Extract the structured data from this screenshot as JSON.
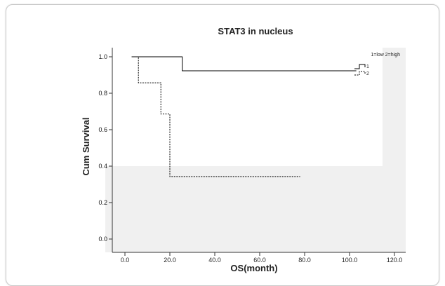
{
  "chart_data": {
    "type": "line",
    "title": "STAT3 in nucleus",
    "xlabel": "OS(month)",
    "ylabel": "Cum Survival",
    "xlim": [
      -5,
      125
    ],
    "ylim": [
      -0.02,
      1.04
    ],
    "x_ticks": [
      0,
      20,
      40,
      60,
      80,
      100,
      120
    ],
    "x_tick_labels": [
      "0.0",
      "20.0",
      "40.0",
      "60.0",
      "80.0",
      "100.0",
      "120.0"
    ],
    "y_ticks": [
      0.0,
      0.2,
      0.4,
      0.6,
      0.8,
      1.0
    ],
    "y_tick_labels": [
      "0.0",
      "0.2",
      "0.4",
      "0.6",
      "0.8",
      "1.0"
    ],
    "legend_title": "1=low 2=high",
    "legend_position": "top-right",
    "series": [
      {
        "name": "1",
        "style": "solid",
        "steps": [
          [
            3,
            1.0
          ],
          [
            25.5,
            1.0
          ],
          [
            25.5,
            0.923
          ],
          [
            103,
            0.923
          ]
        ]
      },
      {
        "name": "2",
        "style": "dashed",
        "steps": [
          [
            3,
            1.0
          ],
          [
            6,
            1.0
          ],
          [
            6,
            0.857
          ],
          [
            16,
            0.857
          ],
          [
            16,
            0.686
          ],
          [
            20,
            0.686
          ],
          [
            20,
            0.343
          ],
          [
            78,
            0.343
          ]
        ]
      }
    ],
    "grid": false
  }
}
